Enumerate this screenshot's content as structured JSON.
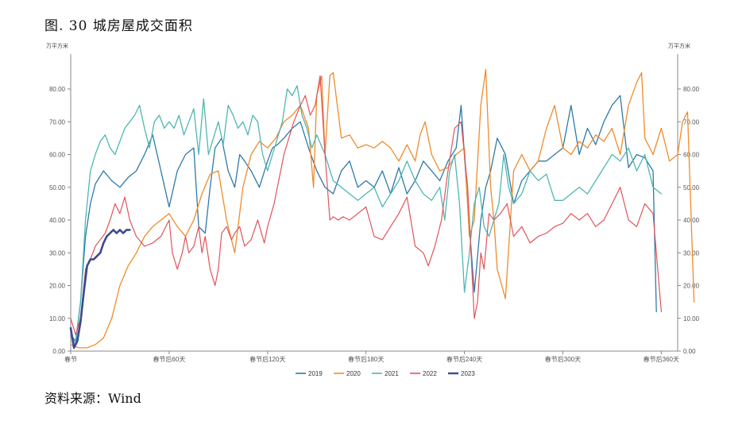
{
  "title": "图. 30 城房屋成交面积",
  "source": "资料来源：Wind",
  "chart_data": {
    "type": "line",
    "y_unit_left": "万平方米",
    "y_unit_right": "万平方米",
    "ylim": [
      0,
      85
    ],
    "yticks": [
      "0.00",
      "10.00",
      "20.00",
      "30.00",
      "40.00",
      "50.00",
      "60.00",
      "70.00",
      "80.00"
    ],
    "xlim": [
      0,
      370
    ],
    "xticks": [
      {
        "x": 0,
        "label": "春节"
      },
      {
        "x": 60,
        "label": "春节后60天"
      },
      {
        "x": 120,
        "label": "春节后120天"
      },
      {
        "x": 180,
        "label": "春节后180天"
      },
      {
        "x": 240,
        "label": "春节后240天"
      },
      {
        "x": 300,
        "label": "春节后300天"
      },
      {
        "x": 360,
        "label": "春节后360天"
      }
    ],
    "legend_position": "bottom",
    "series": [
      {
        "name": "2019",
        "color": "#2f7aa8",
        "width": 1.3,
        "x": [
          0,
          3,
          6,
          9,
          12,
          15,
          20,
          25,
          30,
          35,
          40,
          45,
          50,
          55,
          60,
          65,
          70,
          75,
          78,
          82,
          85,
          88,
          92,
          96,
          100,
          103,
          106,
          110,
          115,
          120,
          123,
          126,
          130,
          135,
          140,
          145,
          150,
          155,
          160,
          165,
          170,
          175,
          180,
          185,
          190,
          195,
          200,
          205,
          210,
          215,
          220,
          225,
          230,
          235,
          238,
          242,
          246,
          250,
          253,
          256,
          260,
          265,
          270,
          275,
          280,
          285,
          290,
          295,
          300,
          305,
          310,
          315,
          320,
          325,
          330,
          335,
          340,
          345,
          350,
          355,
          357
        ],
        "y": [
          5,
          3,
          15,
          35,
          45,
          51,
          55,
          52,
          50,
          53,
          55,
          60,
          66,
          55,
          44,
          55,
          60,
          62,
          38,
          36,
          50,
          62,
          65,
          55,
          50,
          60,
          58,
          55,
          50,
          58,
          62,
          63,
          65,
          68,
          70,
          62,
          55,
          50,
          48,
          55,
          58,
          50,
          52,
          50,
          55,
          48,
          56,
          48,
          52,
          58,
          55,
          52,
          58,
          62,
          75,
          45,
          18,
          40,
          50,
          55,
          65,
          60,
          45,
          52,
          55,
          58,
          58,
          60,
          62,
          75,
          60,
          68,
          63,
          70,
          75,
          78,
          56,
          60,
          59,
          55,
          12
        ]
      },
      {
        "name": "2020",
        "color": "#ef8c2b",
        "width": 1.3,
        "x": [
          0,
          5,
          10,
          15,
          20,
          25,
          30,
          35,
          40,
          45,
          50,
          55,
          60,
          65,
          70,
          75,
          80,
          85,
          90,
          95,
          100,
          105,
          110,
          115,
          120,
          125,
          130,
          135,
          140,
          145,
          148,
          150,
          153,
          155,
          158,
          160,
          165,
          170,
          175,
          180,
          185,
          190,
          195,
          200,
          205,
          210,
          213,
          216,
          220,
          225,
          230,
          235,
          240,
          243,
          246,
          250,
          253,
          256,
          258,
          260,
          265,
          270,
          275,
          280,
          285,
          290,
          295,
          300,
          305,
          310,
          315,
          320,
          325,
          330,
          335,
          340,
          345,
          348,
          350,
          355,
          360,
          365,
          370,
          373,
          376,
          380
        ],
        "y": [
          2,
          1,
          1,
          2,
          4,
          10,
          20,
          26,
          30,
          35,
          38,
          40,
          42,
          38,
          35,
          40,
          48,
          54,
          55,
          40,
          30,
          50,
          60,
          64,
          62,
          65,
          70,
          72,
          75,
          68,
          50,
          78,
          84,
          60,
          84,
          85,
          65,
          66,
          62,
          63,
          62,
          64,
          62,
          58,
          63,
          58,
          66,
          70,
          60,
          55,
          56,
          60,
          62,
          35,
          40,
          75,
          86,
          50,
          40,
          25,
          16,
          55,
          60,
          55,
          58,
          68,
          75,
          62,
          60,
          64,
          62,
          66,
          64,
          68,
          60,
          75,
          82,
          85,
          65,
          60,
          68,
          58,
          60,
          70,
          73,
          15
        ]
      },
      {
        "name": "2021",
        "color": "#4fb7b2",
        "width": 1.3,
        "x": [
          0,
          3,
          6,
          9,
          12,
          15,
          18,
          21,
          24,
          27,
          30,
          33,
          36,
          39,
          42,
          45,
          48,
          51,
          54,
          57,
          60,
          63,
          66,
          69,
          72,
          75,
          78,
          81,
          84,
          87,
          90,
          93,
          96,
          99,
          102,
          105,
          108,
          111,
          114,
          117,
          120,
          123,
          126,
          129,
          132,
          135,
          138,
          141,
          144,
          147,
          150,
          155,
          160,
          165,
          170,
          175,
          180,
          185,
          190,
          195,
          200,
          205,
          210,
          215,
          220,
          225,
          228,
          231,
          234,
          237,
          240,
          243,
          246,
          249,
          252,
          255,
          258,
          261,
          264,
          267,
          270,
          275,
          280,
          285,
          290,
          295,
          300,
          305,
          310,
          315,
          320,
          325,
          330,
          335,
          340,
          345,
          350,
          355,
          360
        ],
        "y": [
          5,
          2,
          15,
          40,
          55,
          60,
          64,
          66,
          62,
          60,
          64,
          68,
          70,
          72,
          75,
          68,
          62,
          70,
          72,
          68,
          70,
          68,
          72,
          66,
          70,
          74,
          60,
          77,
          60,
          65,
          70,
          63,
          75,
          72,
          68,
          70,
          66,
          72,
          70,
          60,
          55,
          60,
          65,
          70,
          80,
          78,
          81,
          72,
          68,
          62,
          66,
          60,
          52,
          50,
          48,
          46,
          48,
          50,
          44,
          48,
          52,
          58,
          52,
          48,
          46,
          50,
          40,
          55,
          60,
          45,
          18,
          30,
          45,
          50,
          38,
          35,
          40,
          45,
          60,
          50,
          45,
          48,
          55,
          52,
          54,
          46,
          46,
          48,
          50,
          48,
          52,
          56,
          60,
          58,
          62,
          55,
          60,
          50,
          48
        ]
      },
      {
        "name": "2022",
        "color": "#e0545b",
        "width": 1.2,
        "x": [
          0,
          3,
          6,
          9,
          12,
          15,
          18,
          21,
          24,
          27,
          30,
          33,
          36,
          40,
          45,
          50,
          55,
          60,
          62,
          65,
          68,
          70,
          72,
          75,
          78,
          80,
          82,
          85,
          88,
          90,
          92,
          95,
          98,
          100,
          103,
          106,
          110,
          114,
          118,
          120,
          124,
          128,
          130,
          133,
          136,
          140,
          143,
          146,
          149,
          152,
          155,
          158,
          160,
          163,
          166,
          170,
          175,
          180,
          185,
          190,
          195,
          200,
          205,
          210,
          215,
          218,
          222,
          226,
          230,
          234,
          238,
          242,
          246,
          248,
          250,
          252,
          255,
          258,
          262,
          266,
          270,
          275,
          280,
          285,
          290,
          295,
          300,
          305,
          310,
          315,
          320,
          325,
          330,
          335,
          340,
          345,
          350,
          355,
          360
        ],
        "y": [
          10,
          5,
          10,
          25,
          28,
          32,
          34,
          36,
          40,
          45,
          42,
          47,
          40,
          35,
          32,
          33,
          35,
          40,
          30,
          25,
          30,
          35,
          30,
          32,
          38,
          30,
          35,
          25,
          20,
          25,
          36,
          38,
          34,
          36,
          38,
          32,
          34,
          40,
          33,
          38,
          45,
          55,
          60,
          65,
          70,
          75,
          78,
          72,
          75,
          84,
          60,
          40,
          41,
          40,
          41,
          40,
          42,
          44,
          35,
          34,
          38,
          42,
          47,
          32,
          30,
          26,
          32,
          40,
          55,
          68,
          70,
          50,
          10,
          15,
          30,
          25,
          42,
          40,
          42,
          45,
          35,
          38,
          33,
          35,
          36,
          38,
          39,
          42,
          40,
          42,
          38,
          40,
          45,
          50,
          40,
          38,
          45,
          42,
          12
        ]
      },
      {
        "name": "2023",
        "color": "#3b4a8e",
        "width": 2.6,
        "x": [
          0,
          2,
          4,
          6,
          8,
          10,
          12,
          14,
          16,
          18,
          20,
          22,
          24,
          26,
          28,
          30,
          32,
          34,
          36
        ],
        "y": [
          7,
          1,
          3,
          9,
          18,
          26,
          28,
          28,
          29,
          30,
          33,
          35,
          36,
          37,
          36,
          37,
          36,
          37,
          37
        ]
      }
    ]
  }
}
